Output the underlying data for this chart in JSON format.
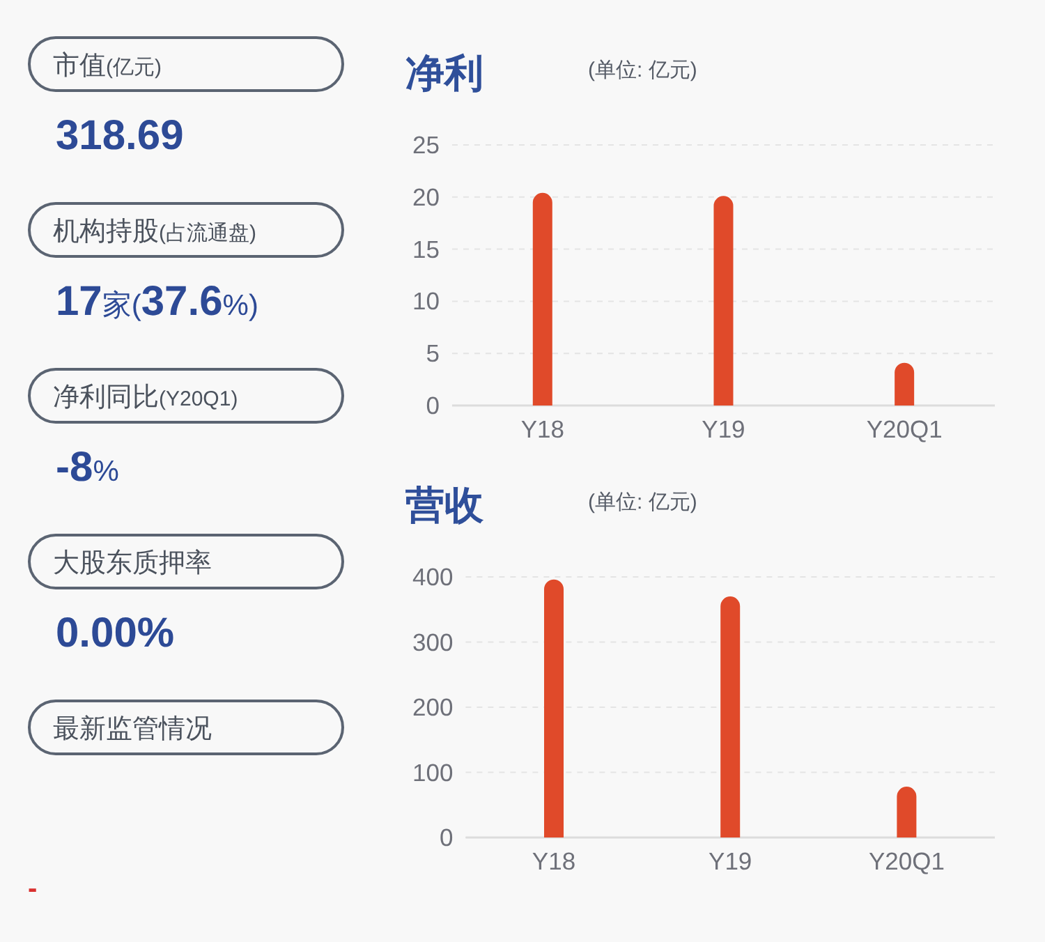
{
  "chart_data": [
    {
      "type": "other",
      "annotations": [
        "市值(亿元)",
        "318.69",
        "机构持股(占流通盘)",
        "**17**家(**37.6**%)",
        "净利同比(Y20Q1)",
        "**-8**%",
        "大股东质押率",
        "0.00%",
        "最新监管情况",
        "-"
      ]
    },
    {
      "type": "bar",
      "title": "净利",
      "subtitle": "(单位: 亿元)",
      "categories": [
        "Y18",
        "Y19",
        "Y20Q1"
      ],
      "values": [
        20.4,
        20.1,
        4.1
      ],
      "color": "#e04a2a",
      "ylim": [
        0,
        25
      ],
      "yticks": [
        0,
        5,
        10,
        15,
        20,
        25
      ],
      "grid": "y"
    },
    {
      "type": "bar",
      "title": "营收",
      "subtitle": "(单位: 亿元)",
      "categories": [
        "Y18",
        "Y19",
        "Y20Q1"
      ],
      "values": [
        396,
        370,
        78
      ],
      "color": "#e04a2a",
      "ylim": [
        0,
        400
      ],
      "yticks": [
        0,
        100,
        200,
        300,
        400
      ],
      "grid": "y"
    }
  ]
}
